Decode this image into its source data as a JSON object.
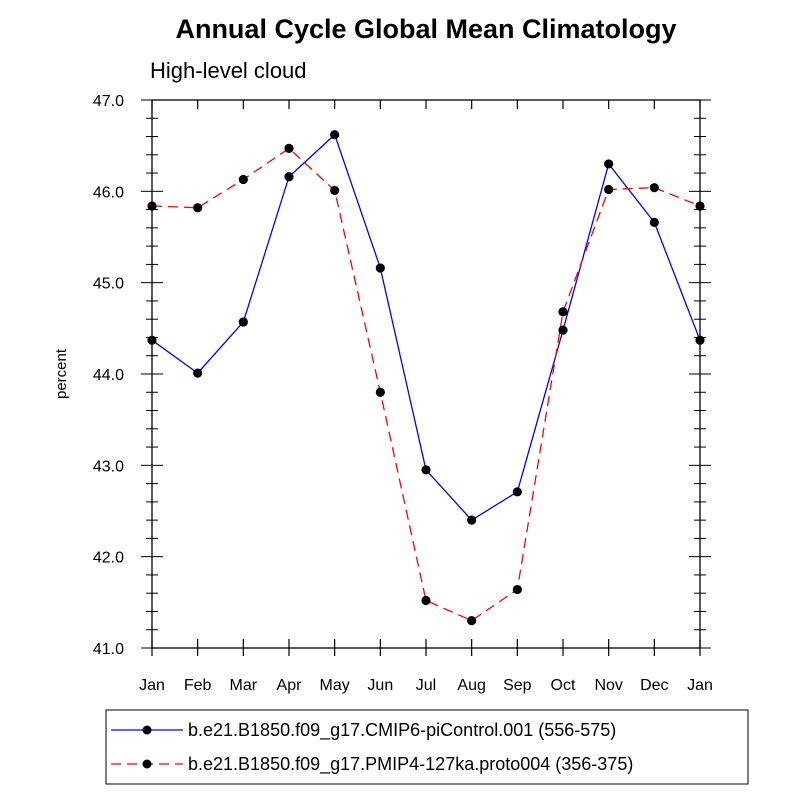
{
  "chart_data": {
    "type": "line",
    "title": "Annual Cycle Global Mean Climatology",
    "subtitle": "High-level cloud",
    "xlabel": "",
    "ylabel": "percent",
    "categories": [
      "Jan",
      "Feb",
      "Mar",
      "Apr",
      "May",
      "Jun",
      "Jul",
      "Aug",
      "Sep",
      "Oct",
      "Nov",
      "Dec",
      "Jan"
    ],
    "ylim": [
      41.0,
      47.0
    ],
    "yticks": [
      "41.0",
      "42.0",
      "43.0",
      "44.0",
      "45.0",
      "46.0",
      "47.0"
    ],
    "grid": false,
    "legend_position": "bottom",
    "series": [
      {
        "name": "b.e21.B1850.f09_g17.CMIP6-piControl.001 (556-575)",
        "color": "#0000ff",
        "line_style": "solid",
        "marker": "filled-circle",
        "values": [
          44.37,
          44.01,
          44.57,
          46.16,
          46.62,
          45.16,
          42.95,
          42.4,
          42.71,
          44.48,
          46.3,
          45.66,
          44.37
        ]
      },
      {
        "name": "b.e21.B1850.f09_g17.PMIP4-127ka.proto004 (356-375)",
        "color": "#ff0000",
        "line_style": "dashed",
        "marker": "filled-circle",
        "values": [
          45.84,
          45.82,
          46.13,
          46.47,
          46.01,
          43.8,
          41.52,
          41.3,
          41.64,
          44.68,
          46.02,
          46.04,
          45.84
        ]
      }
    ]
  }
}
